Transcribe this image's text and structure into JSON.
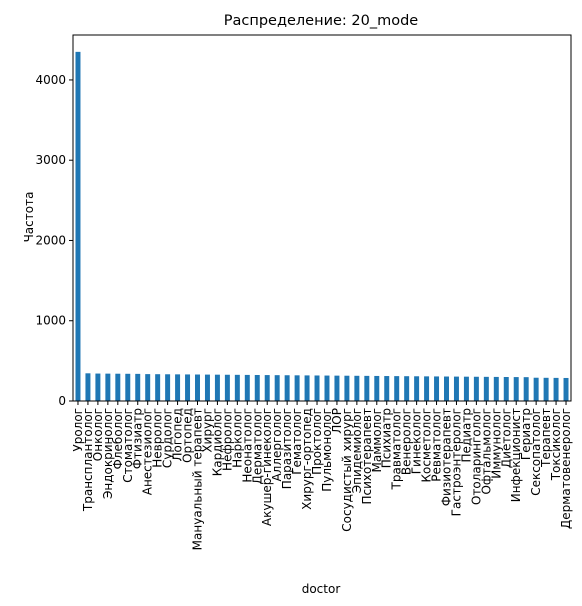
{
  "chart_data": {
    "type": "bar",
    "title": "Распределение: 20_mode",
    "xlabel": "doctor",
    "ylabel": "Частота",
    "ylim": [
      0,
      4560
    ],
    "yticks": [
      0,
      1000,
      2000,
      3000,
      4000
    ],
    "grid": false,
    "bar_color": "#1f77b4",
    "categories": [
      "Уролог",
      "Трансплантолог",
      "Онколог",
      "Эндокринолог",
      "Флеболог",
      "Стоматолог",
      "Фтизиатр",
      "Анестезиолог",
      "Невролог",
      "Сурдолог",
      "Логопед",
      "Ортопед",
      "Мануальный терапевт",
      "Хирург",
      "Кардиолог",
      "Нефролог",
      "Нарколог",
      "Неонатолог",
      "Дерматолог",
      "Акушер-гинеколог",
      "Аллерголог",
      "Паразитолог",
      "Гематолог",
      "Хирург-ортопед",
      "Проктолог",
      "Пульмонолог",
      "ЛОР",
      "Сосудистый хирург",
      "Эпидемиолог",
      "Психотерапевт",
      "Маммолог",
      "Психиатр",
      "Травматолог",
      "Венеролог",
      "Гинеколог",
      "Косметолог",
      "Ревматолог",
      "Физиотерапевт",
      "Гастроэнтеролог",
      "Педиатр",
      "Отоларинголог",
      "Офтальмолог",
      "Иммунолог",
      "Диетолог",
      "Инфекционист",
      "Гериатр",
      "Сексопатолог",
      "Терапевт",
      "Токсиколог",
      "Дерматовенеролог"
    ],
    "values": [
      4350,
      345,
      342,
      341,
      340,
      339,
      338,
      335,
      334,
      333,
      332,
      331,
      330,
      329,
      328,
      327,
      326,
      325,
      324,
      323,
      322,
      321,
      320,
      319,
      318,
      317,
      316,
      315,
      314,
      313,
      312,
      311,
      310,
      309,
      308,
      307,
      306,
      305,
      304,
      303,
      302,
      301,
      300,
      299,
      298,
      297,
      290,
      289,
      288,
      287
    ]
  }
}
